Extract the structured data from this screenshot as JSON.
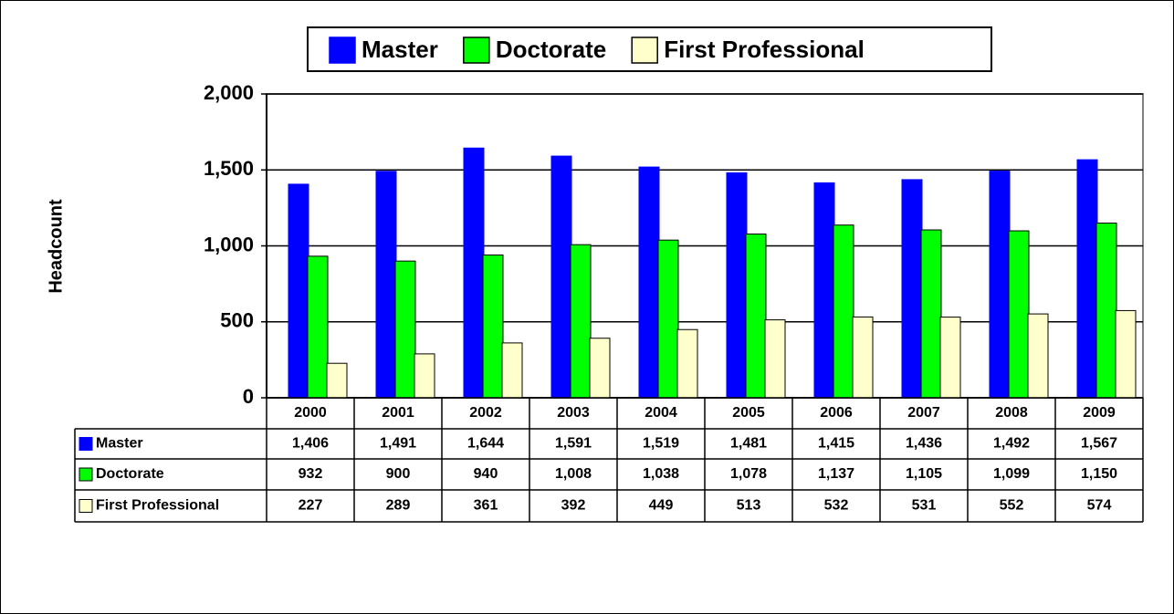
{
  "chart_data": {
    "type": "bar",
    "y_label": "Headcount",
    "categories": [
      "2000",
      "2001",
      "2002",
      "2003",
      "2004",
      "2005",
      "2006",
      "2007",
      "2008",
      "2009"
    ],
    "series": [
      {
        "name": "Master",
        "color": "#0000ff",
        "values": [
          1406,
          1491,
          1644,
          1591,
          1519,
          1481,
          1415,
          1436,
          1492,
          1567
        ],
        "value_labels": [
          "1,406",
          "1,491",
          "1,644",
          "1,591",
          "1,519",
          "1,481",
          "1,415",
          "1,436",
          "1,492",
          "1,567"
        ]
      },
      {
        "name": "Doctorate",
        "color": "#00ff00",
        "values": [
          932,
          900,
          940,
          1008,
          1038,
          1078,
          1137,
          1105,
          1099,
          1150
        ],
        "value_labels": [
          "932",
          "900",
          "940",
          "1,008",
          "1,038",
          "1,078",
          "1,137",
          "1,105",
          "1,099",
          "1,150"
        ]
      },
      {
        "name": "First Professional",
        "color": "#ffffcc",
        "values": [
          227,
          289,
          361,
          392,
          449,
          513,
          532,
          531,
          552,
          574
        ],
        "value_labels": [
          "227",
          "289",
          "361",
          "392",
          "449",
          "513",
          "532",
          "531",
          "552",
          "574"
        ]
      }
    ],
    "ylim": [
      0,
      2000
    ],
    "yticks": [
      0,
      500,
      {
        "value": 1000,
        "label": "1,000"
      },
      {
        "value": 1500,
        "label": "1,500"
      },
      {
        "value": 2000,
        "label": "2,000"
      }
    ],
    "grid": true,
    "legend": "top"
  }
}
